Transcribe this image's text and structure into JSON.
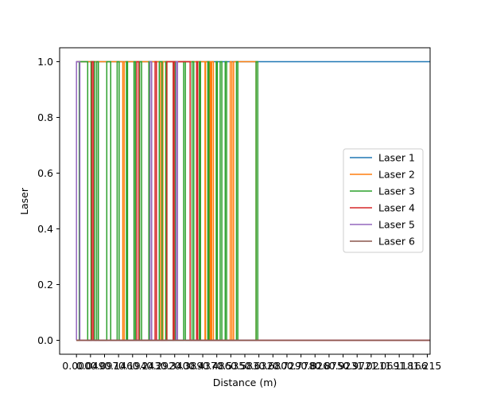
{
  "chart_data": {
    "type": "line",
    "xlabel": "Distance (m)",
    "ylabel": "Laser",
    "title": "",
    "ylim": [
      -0.05,
      1.05
    ],
    "xlim": [
      -0.06,
      1.26
    ],
    "y_ticks": [
      0.0,
      0.2,
      0.4,
      0.6,
      0.8,
      1.0
    ],
    "y_tick_labels": [
      "0.0",
      "0.2",
      "0.4",
      "0.6",
      "0.8",
      "1.0"
    ],
    "x_ticks": [
      0.0,
      0.05,
      0.1,
      0.15,
      0.2,
      0.25,
      0.3,
      0.35,
      0.4,
      0.45,
      0.5,
      0.55,
      0.6,
      0.65,
      0.7,
      0.75,
      0.8,
      0.85,
      0.9,
      0.95,
      1.0,
      1.05,
      1.1,
      1.15,
      1.2,
      1.25
    ],
    "x_tick_labels": [
      "0.000",
      "0.049",
      "0.097",
      "0.146",
      "0.194",
      "0.243",
      "0.292",
      "0.340",
      "0.389",
      "0.437",
      "0.486",
      "0.535",
      "0.583",
      "0.632",
      "0.680",
      "0.729",
      "0.778",
      "0.826",
      "0.875",
      "0.923",
      "0.972",
      "1.021",
      "1.069",
      "1.118",
      "1.166",
      "1.215"
    ],
    "legend_position": "center-right",
    "grid": false,
    "series": [
      {
        "name": "Laser 1",
        "color": "#1f77b4",
        "x": [
          0.0,
          1.26
        ],
        "y": [
          1,
          1
        ]
      },
      {
        "name": "Laser 2",
        "color": "#ff7f0e",
        "x": [
          0.0,
          0.165,
          0.165,
          0.17,
          0.17,
          0.3,
          0.3,
          0.308,
          0.308,
          0.458,
          0.458,
          0.46,
          0.46,
          0.47,
          0.47,
          0.474,
          0.474,
          0.478,
          0.478,
          0.482,
          0.482,
          0.488,
          0.488,
          0.548,
          0.548,
          0.554,
          0.554,
          0.56,
          0.56,
          0.64,
          0.64,
          1.26
        ],
        "y": [
          1,
          1,
          0,
          0,
          1,
          1,
          0,
          0,
          1,
          1,
          0,
          0,
          1,
          1,
          0,
          0,
          1,
          1,
          0,
          0,
          1,
          1,
          0,
          0,
          1,
          1,
          0,
          0,
          1,
          1,
          0,
          0
        ]
      },
      {
        "name": "Laser 3",
        "color": "#2ca02c",
        "x": [
          0.0,
          0.01,
          0.01,
          0.04,
          0.04,
          0.052,
          0.052,
          0.065,
          0.065,
          0.072,
          0.072,
          0.078,
          0.078,
          0.108,
          0.108,
          0.122,
          0.122,
          0.145,
          0.145,
          0.152,
          0.152,
          0.178,
          0.178,
          0.182,
          0.182,
          0.205,
          0.205,
          0.21,
          0.21,
          0.225,
          0.225,
          0.232,
          0.232,
          0.258,
          0.258,
          0.262,
          0.262,
          0.295,
          0.295,
          0.305,
          0.305,
          0.318,
          0.318,
          0.322,
          0.322,
          0.345,
          0.345,
          0.352,
          0.352,
          0.382,
          0.382,
          0.388,
          0.388,
          0.412,
          0.412,
          0.418,
          0.418,
          0.438,
          0.438,
          0.442,
          0.442,
          0.468,
          0.468,
          0.472,
          0.472,
          0.498,
          0.498,
          0.502,
          0.502,
          0.512,
          0.512,
          0.518,
          0.518,
          0.53,
          0.53,
          0.535,
          0.535,
          0.57,
          0.57,
          0.575,
          0.575,
          0.64,
          0.64,
          0.646,
          0.646
        ],
        "y": [
          0,
          0,
          1,
          1,
          0,
          0,
          1,
          1,
          0,
          0,
          1,
          1,
          0,
          0,
          1,
          1,
          0,
          0,
          1,
          1,
          0,
          0,
          1,
          1,
          0,
          0,
          1,
          1,
          0,
          0,
          1,
          1,
          0,
          0,
          1,
          1,
          0,
          0,
          1,
          1,
          0,
          0,
          1,
          1,
          0,
          0,
          1,
          1,
          0,
          0,
          1,
          1,
          0,
          0,
          1,
          1,
          0,
          0,
          1,
          1,
          0,
          0,
          1,
          1,
          0,
          0,
          1,
          1,
          0,
          0,
          1,
          1,
          0,
          0,
          1,
          1,
          0,
          0,
          1,
          1,
          0,
          0,
          1,
          1,
          0
        ]
      },
      {
        "name": "Laser 4",
        "color": "#d62728",
        "x": [
          0.0,
          0.055,
          0.055,
          0.06,
          0.06,
          0.215,
          0.215,
          0.222,
          0.222,
          0.28,
          0.28,
          0.285,
          0.285,
          0.322,
          0.322,
          0.345,
          0.345,
          0.348,
          0.348,
          0.405,
          0.405,
          0.428,
          0.428,
          0.432,
          0.432,
          1.26
        ],
        "y": [
          0,
          0,
          1,
          1,
          0,
          0,
          1,
          1,
          0,
          0,
          1,
          1,
          0,
          0,
          1,
          1,
          0,
          0,
          1,
          1,
          0,
          0,
          1,
          1,
          0,
          0
        ]
      },
      {
        "name": "Laser 5",
        "color": "#9467bd",
        "x": [
          0.0,
          0.0,
          0.0,
          0.012,
          0.012,
          0.262,
          0.262,
          0.268,
          0.268,
          0.355,
          0.355,
          0.36,
          0.36,
          1.26
        ],
        "y": [
          0,
          1,
          1,
          1,
          0,
          0,
          1,
          1,
          0,
          0,
          1,
          1,
          0,
          0
        ]
      },
      {
        "name": "Laser 6",
        "color": "#8c564b",
        "x": [
          0.0,
          1.26
        ],
        "y": [
          0,
          0
        ]
      }
    ]
  }
}
